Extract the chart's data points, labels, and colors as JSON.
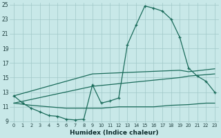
{
  "xlabel": "Humidex (Indice chaleur)",
  "bg_color": "#c8e8e8",
  "grid_color": "#a0c8c8",
  "line_color": "#1a6b5a",
  "xlim_min": 0,
  "xlim_max": 23,
  "ylim_min": 9,
  "ylim_max": 25,
  "xticks": [
    0,
    1,
    2,
    3,
    4,
    5,
    6,
    7,
    8,
    9,
    10,
    11,
    12,
    13,
    14,
    15,
    16,
    17,
    18,
    19,
    20,
    21,
    22,
    23
  ],
  "yticks": [
    9,
    11,
    13,
    15,
    17,
    19,
    21,
    23,
    25
  ],
  "curve_x": [
    0,
    1,
    2,
    3,
    4,
    5,
    6,
    7,
    8,
    9,
    10,
    11,
    12,
    13,
    14,
    15,
    16,
    17,
    18,
    19,
    20,
    21,
    22,
    23
  ],
  "curve_y": [
    12.5,
    11.5,
    10.8,
    10.3,
    9.8,
    9.7,
    9.3,
    9.2,
    9.3,
    14.0,
    11.5,
    11.8,
    12.2,
    19.5,
    22.2,
    24.8,
    24.5,
    24.1,
    23.0,
    20.5,
    16.3,
    15.2,
    14.5,
    13.0
  ],
  "line_diag_upper_x": [
    0,
    9,
    19,
    20,
    23
  ],
  "line_diag_upper_y": [
    12.5,
    15.5,
    16.0,
    15.8,
    16.2
  ],
  "line_mid_x": [
    0,
    9,
    19,
    20,
    23
  ],
  "line_mid_y": [
    11.5,
    13.8,
    15.0,
    15.2,
    15.5
  ],
  "line_flat_x": [
    0,
    2,
    4,
    6,
    8,
    10,
    12,
    14,
    16,
    18,
    20,
    22,
    23
  ],
  "line_flat_y": [
    11.5,
    11.2,
    11.0,
    10.8,
    10.8,
    10.8,
    11.0,
    11.0,
    11.0,
    11.2,
    11.3,
    11.5,
    11.5
  ]
}
